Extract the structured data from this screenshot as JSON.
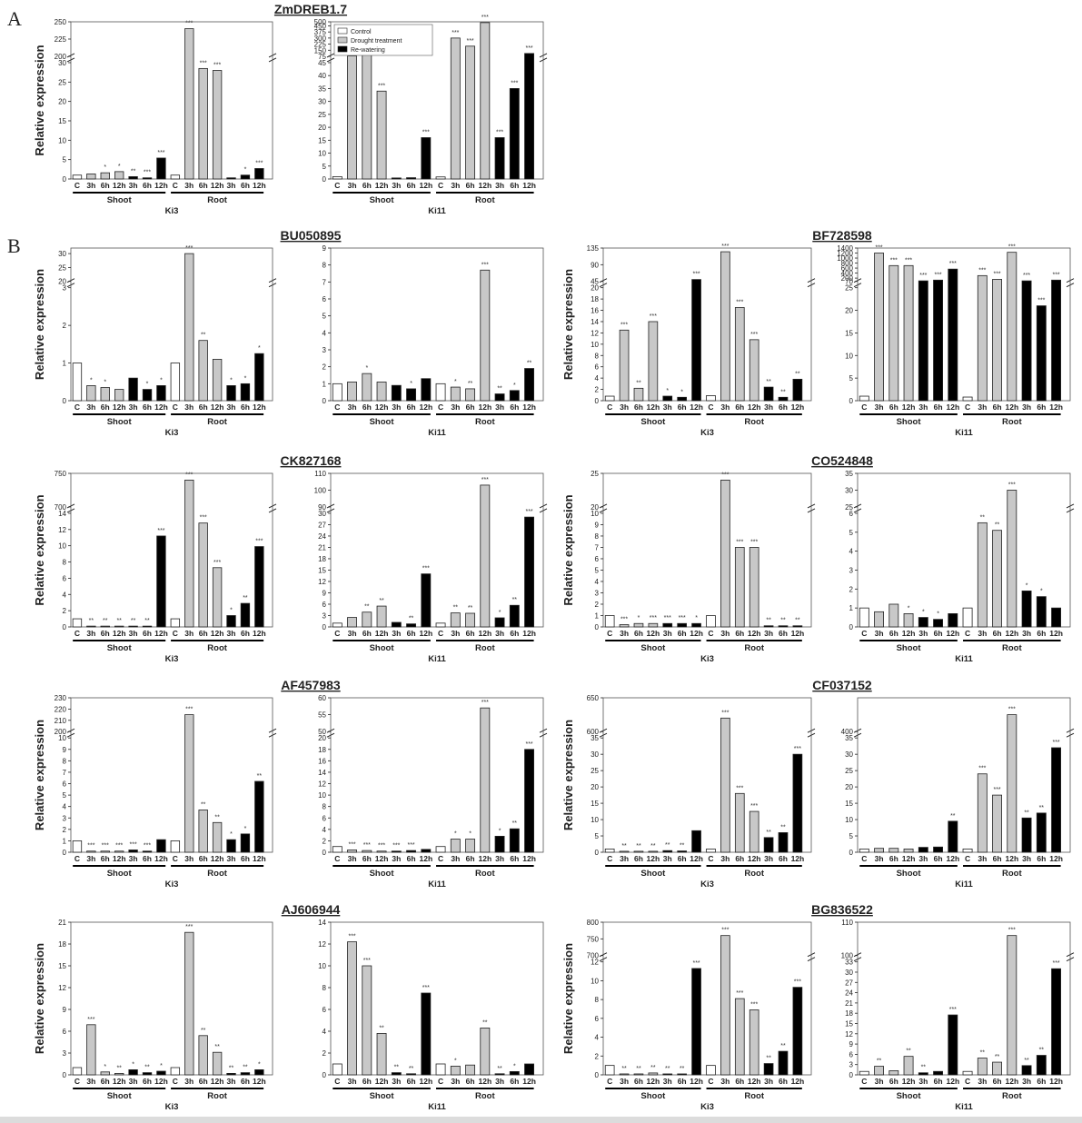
{
  "panel_letters": [
    "A",
    "B"
  ],
  "common": {
    "ylabel": "Relative expression",
    "sample_labels": [
      "C",
      "3h",
      "6h",
      "12h",
      "3h",
      "6h",
      "12h",
      "C",
      "3h",
      "6h",
      "12h",
      "3h",
      "6h",
      "12h"
    ],
    "tissue_labels": [
      "Shoot",
      "Root"
    ],
    "legend": [
      "Control",
      "Drought treatment",
      "Re-watering"
    ],
    "colors": {
      "control": "#ffffff",
      "drought": "#c8c8c8",
      "rewater": "#000000",
      "axis": "#222222"
    }
  },
  "chart_data": [
    {
      "type": "bar",
      "gene": "ZmDREB1.7",
      "cultivar": "Ki3",
      "scale": "broken",
      "ylow": [
        0,
        30
      ],
      "yticks_low": [
        0,
        5,
        10,
        15,
        20,
        25,
        30
      ],
      "yhigh": [
        200,
        250
      ],
      "yticks_high": [
        200,
        225,
        250
      ],
      "values": [
        1.0,
        1.3,
        1.6,
        1.9,
        0.6,
        0.3,
        5.4,
        1.0,
        240,
        28.5,
        28,
        0.3,
        1.0,
        2.7
      ],
      "stars": [
        "",
        "",
        "*",
        "*",
        "**",
        "***",
        "***",
        "",
        "***",
        "***",
        "***",
        "",
        "*",
        "***"
      ]
    },
    {
      "type": "bar",
      "gene": "ZmDREB1.7",
      "cultivar": "Ki11",
      "scale": "broken",
      "legend": true,
      "ylow": [
        0,
        45
      ],
      "yticks_low": [
        0,
        5,
        10,
        15,
        20,
        25,
        30,
        35,
        40,
        45
      ],
      "yhigh": [
        75,
        500
      ],
      "yticks_high": [
        75,
        150,
        225,
        300,
        375,
        450,
        500
      ],
      "values": [
        0.9,
        80,
        110,
        34,
        0.4,
        0.5,
        16,
        0.8,
        300,
        200,
        490,
        16,
        35,
        110
      ],
      "stars": [
        "",
        "***",
        "***",
        "***",
        "",
        "",
        "***",
        "",
        "***",
        "***",
        "***",
        "***",
        "***",
        "***"
      ]
    },
    {
      "type": "bar",
      "gene": "BU050895",
      "cultivar": "Ki3",
      "scale": "broken",
      "ylow": [
        0,
        3
      ],
      "yticks_low": [
        0,
        1,
        2,
        3
      ],
      "yhigh": [
        20,
        32
      ],
      "yticks_high": [
        20,
        25,
        30
      ],
      "values": [
        1.0,
        0.4,
        0.35,
        0.3,
        0.6,
        0.3,
        0.4,
        1.0,
        30,
        1.6,
        1.1,
        0.4,
        0.45,
        1.25
      ],
      "stars": [
        "",
        "*",
        "*",
        "",
        "",
        "*",
        "*",
        "",
        "***",
        "**",
        "",
        "*",
        "*",
        "*"
      ]
    },
    {
      "type": "bar",
      "gene": "BU050895",
      "cultivar": "Ki11",
      "scale": "linear",
      "ylim": [
        0,
        9
      ],
      "yticks": [
        0,
        1,
        2,
        3,
        4,
        5,
        6,
        7,
        8,
        9
      ],
      "values": [
        1.0,
        1.1,
        1.6,
        1.1,
        0.9,
        0.7,
        1.3,
        1.0,
        0.8,
        0.7,
        7.7,
        0.4,
        0.6,
        1.9
      ],
      "stars": [
        "",
        "",
        "*",
        "",
        "",
        "*",
        "",
        "",
        "*",
        "**",
        "***",
        "**",
        "*",
        "**"
      ]
    },
    {
      "type": "bar",
      "gene": "BF728598",
      "cultivar": "Ki3",
      "scale": "broken",
      "ylow": [
        0,
        20
      ],
      "yticks_low": [
        0,
        2,
        4,
        6,
        8,
        10,
        12,
        14,
        16,
        18,
        20
      ],
      "yhigh": [
        45,
        135
      ],
      "yticks_high": [
        45,
        90,
        135
      ],
      "values": [
        0.8,
        12.5,
        2.2,
        14,
        0.8,
        0.6,
        50,
        0.9,
        125,
        16.5,
        10.8,
        2.4,
        0.6,
        3.8
      ],
      "stars": [
        "",
        "***",
        "**",
        "***",
        "*",
        "*",
        "***",
        "",
        "***",
        "***",
        "***",
        "**",
        "**",
        "**"
      ]
    },
    {
      "type": "bar",
      "gene": "BF728598",
      "cultivar": "Ki11",
      "scale": "broken",
      "ylow": [
        0,
        25
      ],
      "yticks_low": [
        0,
        5,
        10,
        15,
        20,
        25
      ],
      "yhigh": [
        70,
        1400
      ],
      "yticks_high": [
        70,
        200,
        400,
        600,
        800,
        1000,
        1200,
        1400
      ],
      "values": [
        1.0,
        1200,
        700,
        700,
        90,
        120,
        560,
        0.8,
        300,
        150,
        1230,
        90,
        21,
        120
      ],
      "stars": [
        "",
        "***",
        "***",
        "***",
        "***",
        "***",
        "***",
        "",
        "***",
        "***",
        "***",
        "***",
        "***",
        "***"
      ]
    },
    {
      "type": "bar",
      "gene": "CK827168",
      "cultivar": "Ki3",
      "scale": "broken",
      "ylow": [
        0,
        14
      ],
      "yticks_low": [
        0,
        2,
        4,
        6,
        8,
        10,
        12,
        14
      ],
      "yhigh": [
        700,
        750
      ],
      "yticks_high": [
        700,
        750
      ],
      "values": [
        1.0,
        0.1,
        0.1,
        0.1,
        0.1,
        0.1,
        11.2,
        1.0,
        740,
        12.8,
        7.3,
        1.4,
        2.9,
        9.9
      ],
      "stars": [
        "",
        "**",
        "**",
        "**",
        "**",
        "**",
        "***",
        "",
        "***",
        "***",
        "***",
        "*",
        "**",
        "***"
      ]
    },
    {
      "type": "bar",
      "gene": "CK827168",
      "cultivar": "Ki11",
      "scale": "broken",
      "ylow": [
        0,
        30
      ],
      "yticks_low": [
        0,
        3,
        6,
        9,
        12,
        15,
        18,
        21,
        24,
        27,
        30
      ],
      "yhigh": [
        90,
        110
      ],
      "yticks_high": [
        90,
        100,
        110
      ],
      "values": [
        1.0,
        2.5,
        3.9,
        5.5,
        1.2,
        0.8,
        14,
        1.0,
        3.7,
        3.6,
        103,
        2.4,
        5.7,
        29
      ],
      "stars": [
        "",
        "",
        "**",
        "**",
        "",
        "**",
        "***",
        "",
        "**",
        "**",
        "***",
        "*",
        "**",
        "***"
      ]
    },
    {
      "type": "bar",
      "gene": "CO524848",
      "cultivar": "Ki3",
      "scale": "broken",
      "ylow": [
        0,
        10
      ],
      "yticks_low": [
        0,
        1,
        2,
        3,
        4,
        5,
        6,
        7,
        8,
        9,
        10
      ],
      "yhigh": [
        20,
        25
      ],
      "yticks_high": [
        20,
        25
      ],
      "values": [
        1.0,
        0.2,
        0.3,
        0.3,
        0.3,
        0.3,
        0.3,
        1.0,
        24,
        7,
        7,
        0.1,
        0.1,
        0.1
      ],
      "stars": [
        "",
        "***",
        "*",
        "***",
        "***",
        "***",
        "*",
        "",
        "***",
        "***",
        "***",
        "**",
        "**",
        "**"
      ]
    },
    {
      "type": "bar",
      "gene": "CO524848",
      "cultivar": "Ki11",
      "scale": "broken",
      "ylow": [
        0,
        6
      ],
      "yticks_low": [
        0,
        1,
        2,
        3,
        4,
        5,
        6
      ],
      "yhigh": [
        25,
        35
      ],
      "yticks_high": [
        25,
        30,
        35
      ],
      "values": [
        1.0,
        0.8,
        1.2,
        0.7,
        0.5,
        0.4,
        0.7,
        1.0,
        5.5,
        5.1,
        30,
        1.9,
        1.6,
        1.0
      ],
      "stars": [
        "",
        "",
        "",
        "*",
        "*",
        "*",
        "",
        "",
        "**",
        "**",
        "***",
        "*",
        "*",
        ""
      ]
    },
    {
      "type": "bar",
      "gene": "AF457983",
      "cultivar": "Ki3",
      "scale": "broken",
      "ylow": [
        0,
        10
      ],
      "yticks_low": [
        0,
        1,
        2,
        3,
        4,
        5,
        6,
        7,
        8,
        9,
        10
      ],
      "yhigh": [
        200,
        230
      ],
      "yticks_high": [
        200,
        210,
        220,
        230
      ],
      "values": [
        1.0,
        0.1,
        0.1,
        0.1,
        0.2,
        0.1,
        1.1,
        1.0,
        215,
        3.7,
        2.6,
        1.1,
        1.6,
        6.2
      ],
      "stars": [
        "",
        "***",
        "***",
        "***",
        "***",
        "***",
        "",
        "",
        "***",
        "**",
        "**",
        "*",
        "*",
        "**"
      ]
    },
    {
      "type": "bar",
      "gene": "AF457983",
      "cultivar": "Ki11",
      "scale": "broken",
      "ylow": [
        0,
        20
      ],
      "yticks_low": [
        0,
        2,
        4,
        6,
        8,
        10,
        12,
        14,
        16,
        18,
        20
      ],
      "yhigh": [
        50,
        60
      ],
      "yticks_high": [
        50,
        55,
        60
      ],
      "values": [
        1.0,
        0.4,
        0.3,
        0.2,
        0.2,
        0.3,
        0.5,
        1.0,
        2.3,
        2.3,
        57,
        2.8,
        4.1,
        18
      ],
      "stars": [
        "",
        "***",
        "***",
        "***",
        "***",
        "***",
        "",
        "",
        "*",
        "*",
        "***",
        "*",
        "**",
        "***"
      ]
    },
    {
      "type": "bar",
      "gene": "CF037152",
      "cultivar": "Ki3",
      "scale": "broken",
      "ylow": [
        0,
        35
      ],
      "yticks_low": [
        0,
        5,
        10,
        15,
        20,
        25,
        30,
        35
      ],
      "yhigh": [
        600,
        650
      ],
      "yticks_high": [
        600,
        650
      ],
      "values": [
        1.0,
        0.3,
        0.3,
        0.3,
        0.5,
        0.4,
        6.6,
        1.0,
        620,
        18,
        12.5,
        4.5,
        6,
        30
      ],
      "stars": [
        "",
        "**",
        "**",
        "**",
        "**",
        "**",
        "",
        "",
        "***",
        "***",
        "***",
        "**",
        "**",
        "***"
      ]
    },
    {
      "type": "bar",
      "gene": "CF037152",
      "cultivar": "Ki11",
      "scale": "broken",
      "ylow": [
        0,
        35
      ],
      "yticks_low": [
        0,
        5,
        10,
        15,
        20,
        25,
        30,
        35
      ],
      "yhigh": [
        400,
        410
      ],
      "yticks_high": [
        400
      ],
      "values": [
        1.0,
        1.2,
        1.2,
        1.0,
        1.5,
        1.6,
        9.5,
        1.0,
        24,
        17.5,
        405,
        10.5,
        12,
        32
      ],
      "stars": [
        "",
        "",
        "",
        "",
        "",
        "",
        "**",
        "",
        "***",
        "***",
        "***",
        "**",
        "**",
        "***"
      ]
    },
    {
      "type": "bar",
      "gene": "AJ606944",
      "cultivar": "Ki3",
      "scale": "linear",
      "ylim": [
        0,
        21
      ],
      "yticks": [
        0,
        3,
        6,
        9,
        12,
        15,
        18,
        21
      ],
      "values": [
        1.0,
        6.9,
        0.4,
        0.2,
        0.7,
        0.3,
        0.5,
        1.0,
        19.6,
        5.4,
        3.1,
        0.2,
        0.3,
        0.7
      ],
      "stars": [
        "",
        "***",
        "*",
        "**",
        "*",
        "**",
        "*",
        "",
        "***",
        "**",
        "**",
        "**",
        "**",
        "*"
      ]
    },
    {
      "type": "bar",
      "gene": "AJ606944",
      "cultivar": "Ki11",
      "scale": "linear",
      "ylim": [
        0,
        14
      ],
      "yticks": [
        0,
        2,
        4,
        6,
        8,
        10,
        12,
        14
      ],
      "values": [
        1.0,
        12.2,
        10,
        3.8,
        0.2,
        0.1,
        7.5,
        1.0,
        0.8,
        0.9,
        4.3,
        0.1,
        0.3,
        1.0
      ],
      "stars": [
        "",
        "***",
        "***",
        "**",
        "**",
        "**",
        "***",
        "",
        "*",
        "",
        "**",
        "**",
        "*",
        ""
      ]
    },
    {
      "type": "bar",
      "gene": "BG836522",
      "cultivar": "Ki3",
      "scale": "broken",
      "ylow": [
        0,
        12
      ],
      "yticks_low": [
        0,
        2,
        4,
        6,
        8,
        10,
        12
      ],
      "yhigh": [
        700,
        800
      ],
      "yticks_high": [
        700,
        750,
        800
      ],
      "values": [
        1.0,
        0.1,
        0.1,
        0.2,
        0.1,
        0.1,
        11.3,
        1.0,
        760,
        8.1,
        6.9,
        1.2,
        2.5,
        9.3
      ],
      "stars": [
        "",
        "**",
        "**",
        "**",
        "**",
        "**",
        "***",
        "",
        "***",
        "***",
        "***",
        "**",
        "**",
        "***"
      ]
    },
    {
      "type": "bar",
      "gene": "BG836522",
      "cultivar": "Ki11",
      "scale": "broken",
      "ylow": [
        0,
        33
      ],
      "yticks_low": [
        0,
        3,
        6,
        9,
        12,
        15,
        18,
        21,
        24,
        27,
        30,
        33
      ],
      "yhigh": [
        100,
        110
      ],
      "yticks_high": [
        100,
        110
      ],
      "values": [
        1.0,
        2.5,
        1.2,
        5.4,
        0.6,
        1.0,
        17.5,
        1.0,
        4.9,
        3.7,
        106,
        2.7,
        5.7,
        31
      ],
      "stars": [
        "",
        "**",
        "",
        "**",
        "**",
        "",
        "***",
        "",
        "**",
        "**",
        "***",
        "**",
        "**",
        "***"
      ]
    }
  ]
}
